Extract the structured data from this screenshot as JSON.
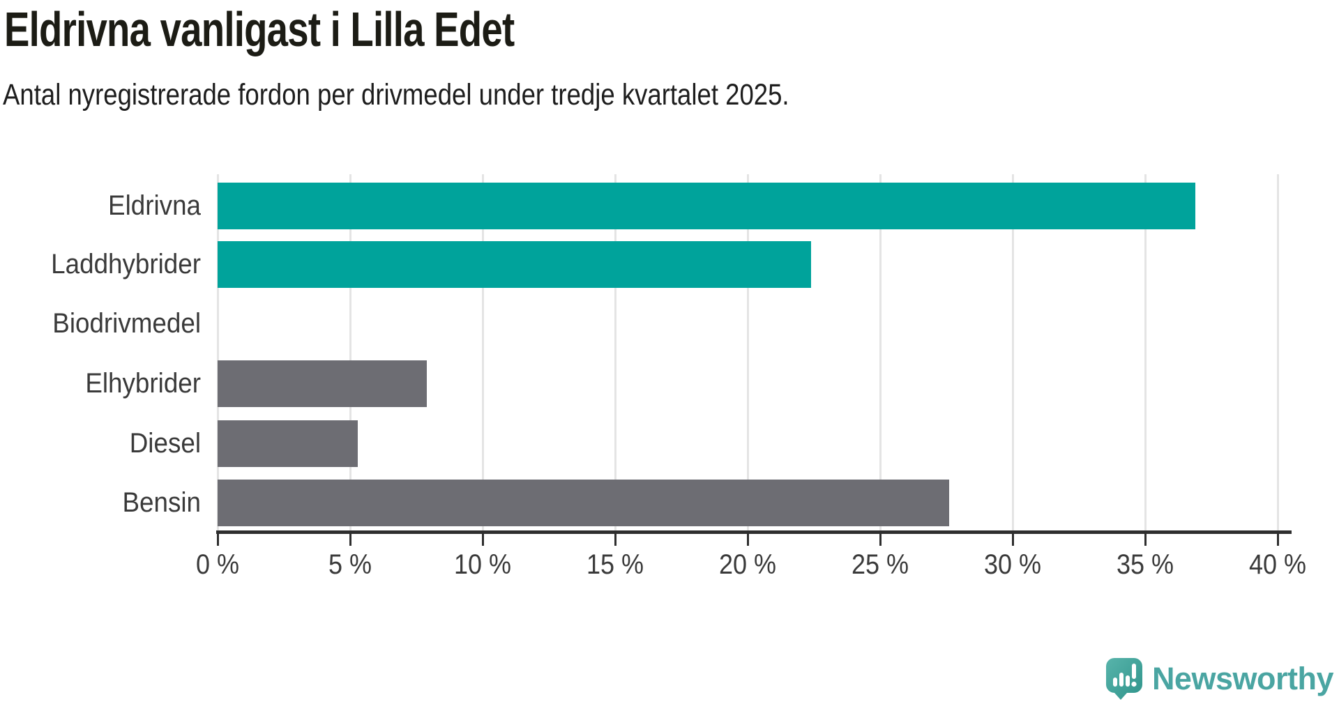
{
  "title": "Eldrivna vanligast i Lilla Edet",
  "subtitle": "Antal nyregistrerade fordon per drivmedel under tredje kvartalet 2025.",
  "chart_data": {
    "type": "bar",
    "orientation": "horizontal",
    "title": "Eldrivna vanligast i Lilla Edet",
    "subtitle": "Antal nyregistrerade fordon per drivmedel under tredje kvartalet 2025.",
    "categories": [
      "Eldrivna",
      "Laddhybrider",
      "Biodrivmedel",
      "Elhybrider",
      "Diesel",
      "Bensin"
    ],
    "values": [
      36.9,
      22.4,
      0,
      7.9,
      5.3,
      27.6
    ],
    "unit": "%",
    "bar_colors": [
      "#00a39b",
      "#00a39b",
      "#6d6d73",
      "#6d6d73",
      "#6d6d73",
      "#6d6d73"
    ],
    "xlim": [
      0,
      40
    ],
    "xticks": [
      0,
      5,
      10,
      15,
      20,
      25,
      30,
      35,
      40
    ],
    "xtick_labels": [
      "0 %",
      "5 %",
      "10 %",
      "15 %",
      "20 %",
      "25 %",
      "30 %",
      "35 %",
      "40 %"
    ],
    "xlabel": "",
    "ylabel": "",
    "grid": "vertical-only",
    "legend": "none"
  },
  "colors": {
    "highlight": "#00a39b",
    "neutral": "#6d6d73",
    "gridline": "#e4e4e4",
    "axis": "#2e2e2e",
    "title_text": "#1c1c15",
    "label_text": "#3a3a3a",
    "brand_teal": "#4aa5a2"
  },
  "branding": {
    "logo_text": "Newsworthy",
    "logo_icon": "newsworthy-speech-bubble-bar-chart-icon"
  }
}
